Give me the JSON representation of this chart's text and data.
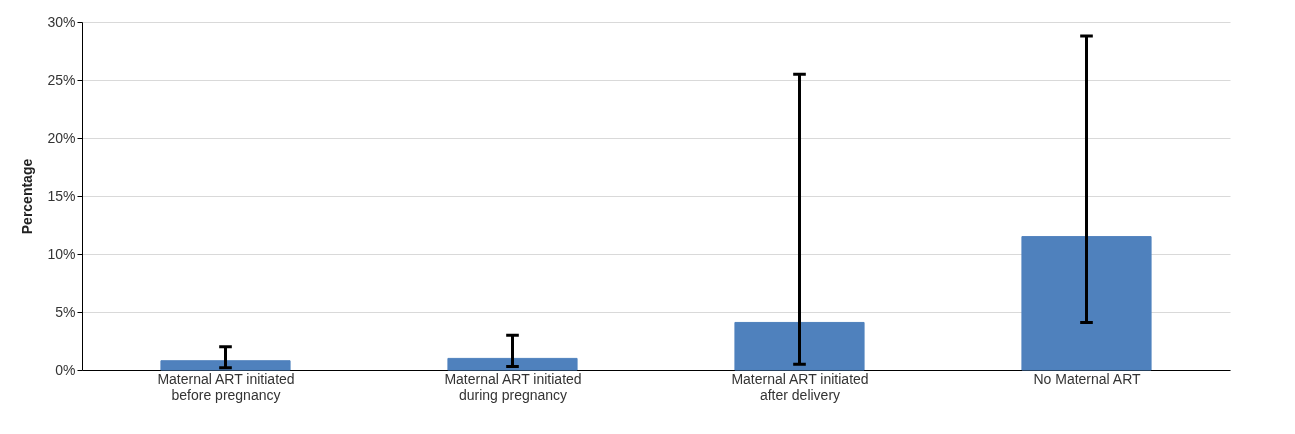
{
  "chart_data": {
    "type": "bar",
    "ylabel": "Percentage",
    "categories": [
      "Maternal ART initiated before pregnancy",
      "Maternal ART initiated during pregnancy",
      "Maternal ART initiated after delivery",
      "No Maternal ART"
    ],
    "values": [
      0.8,
      1.0,
      4.1,
      11.5
    ],
    "errors": [
      [
        0.2,
        2.0
      ],
      [
        0.3,
        3.0
      ],
      [
        0.5,
        25.5
      ],
      [
        4.1,
        28.8
      ]
    ],
    "color": "#4f81bd",
    "ylim": [
      0,
      30
    ],
    "yticks": [
      {
        "value": 0,
        "label": "0%"
      },
      {
        "value": 5,
        "label": "5%"
      },
      {
        "value": 10,
        "label": "10%"
      },
      {
        "value": 15,
        "label": "15%"
      },
      {
        "value": 20,
        "label": "20%"
      },
      {
        "value": 25,
        "label": "25%"
      },
      {
        "value": 30,
        "label": "30%"
      }
    ],
    "grid": "y"
  }
}
